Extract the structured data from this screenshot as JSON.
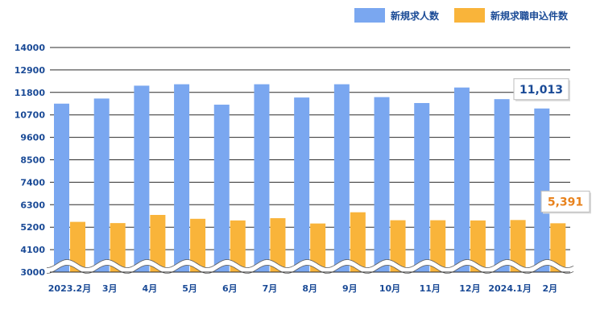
{
  "chart_data": {
    "type": "bar",
    "categories": [
      "2023.2月",
      "3月",
      "4月",
      "5月",
      "6月",
      "7月",
      "8月",
      "9月",
      "10月",
      "11月",
      "12月",
      "2024.1月",
      "2月"
    ],
    "series": [
      {
        "name": "新規求人数",
        "color": "#7aa7f0",
        "values": [
          11250,
          11500,
          12130,
          12200,
          11200,
          12200,
          11550,
          12200,
          11570,
          11280,
          12040,
          11470,
          11013
        ]
      },
      {
        "name": "新規求職申込件数",
        "color": "#f9b43a",
        "values": [
          5460,
          5400,
          5800,
          5610,
          5530,
          5640,
          5380,
          5930,
          5540,
          5540,
          5530,
          5550,
          5391
        ]
      }
    ],
    "y_ticks": [
      "14000",
      "12900",
      "11800",
      "10700",
      "9600",
      "8500",
      "7400",
      "6300",
      "5200",
      "4100",
      "3000"
    ],
    "ylim": [
      3000,
      14000
    ],
    "axis_break": true,
    "grid": true,
    "legend_position": "top-right",
    "annotations": [
      {
        "text": "11,013",
        "series": 0,
        "index": 12,
        "color": "#1a4a96"
      },
      {
        "text": "5,391",
        "series": 1,
        "index": 12,
        "color": "#e8821c"
      }
    ]
  }
}
